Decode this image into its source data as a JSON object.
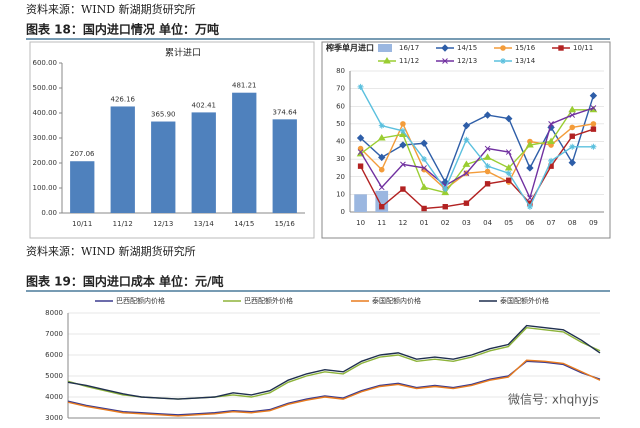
{
  "source_top": "资料来源：WIND 新湖期货研究所",
  "figure18_title": "图表 18：国内进口情况   单位：万吨",
  "source_mid": "资料来源：WIND 新湖期货研究所",
  "figure19_title": "图表 19：国内进口成本   单位：元/吨",
  "watermark": "微信号: xhqhyjs",
  "chart_data": [
    {
      "type": "bar",
      "title": "累计进口",
      "color": "#4f81bd",
      "categories": [
        "10/11",
        "11/12",
        "12/13",
        "13/14",
        "14/15",
        "15/16"
      ],
      "values": [
        207.06,
        426.16,
        365.9,
        402.41,
        481.21,
        374.64
      ],
      "value_labels": [
        "207.06",
        "426.16",
        "365.90",
        "402.41",
        "481.21",
        "374.64"
      ],
      "ylim": [
        0,
        600
      ],
      "yticks": [
        {
          "value": 0,
          "label": "0.00"
        },
        {
          "value": 100,
          "label": "100.00"
        },
        {
          "value": 200,
          "label": "200.00"
        },
        {
          "value": 300,
          "label": "300.00"
        },
        {
          "value": 400,
          "label": "400.00"
        },
        {
          "value": 500,
          "label": "500.00"
        },
        {
          "value": 600,
          "label": "600.00"
        }
      ],
      "grid": false
    },
    {
      "type": "line",
      "title": "榨季单月进口",
      "categories": [
        "10",
        "11",
        "12",
        "01",
        "02",
        "03",
        "04",
        "05",
        "06",
        "07",
        "08",
        "09"
      ],
      "ylim": [
        0,
        80
      ],
      "yticks": [
        0,
        10,
        20,
        30,
        40,
        50,
        60,
        70,
        80
      ],
      "grid": true,
      "series": [
        {
          "name": "16/17",
          "color": "#9bb7e0",
          "series_type": "bar",
          "values": [
            10,
            12,
            null,
            null,
            null,
            null,
            null,
            null,
            null,
            null,
            null,
            null
          ]
        },
        {
          "name": "14/15",
          "color": "#2e5ea8",
          "marker": "diamond",
          "values": [
            42,
            31,
            38,
            39,
            17,
            49,
            55,
            53,
            25,
            48,
            28,
            66
          ]
        },
        {
          "name": "15/16",
          "color": "#f39c3a",
          "marker": "circle",
          "values": [
            36,
            24,
            50,
            24,
            13,
            22,
            23,
            17,
            40,
            38,
            48,
            50
          ]
        },
        {
          "name": "10/11",
          "color": "#b22222",
          "marker": "square",
          "values": [
            26,
            3,
            13,
            2,
            3,
            5,
            16,
            18,
            5,
            26,
            43,
            47
          ]
        },
        {
          "name": "11/12",
          "color": "#9acd32",
          "marker": "triangle",
          "values": [
            33,
            42,
            44,
            14,
            11,
            27,
            31,
            25,
            38,
            40,
            58,
            58
          ]
        },
        {
          "name": "12/13",
          "color": "#7030a0",
          "marker": "x",
          "values": [
            34,
            14,
            27,
            25,
            15,
            22,
            36,
            34,
            8,
            50,
            55,
            59
          ]
        },
        {
          "name": "13/14",
          "color": "#5bc0de",
          "marker": "star",
          "values": [
            71,
            49,
            46,
            30,
            13,
            41,
            26,
            22,
            3,
            29,
            37,
            37
          ]
        }
      ]
    },
    {
      "type": "line",
      "ylim": [
        3000,
        8000
      ],
      "yticks": [
        3000,
        4000,
        5000,
        6000,
        7000,
        8000
      ],
      "grid": true,
      "series": [
        {
          "name": "巴西配额内价格",
          "color": "#3b3b8f",
          "values": [
            3800,
            3600,
            3450,
            3300,
            3250,
            3200,
            3150,
            3200,
            3250,
            3350,
            3300,
            3400,
            3700,
            3900,
            4050,
            3950,
            4300,
            4550,
            4650,
            4450,
            4550,
            4450,
            4600,
            4850,
            5000,
            5700,
            5650,
            5550,
            5150,
            4850
          ]
        },
        {
          "name": "巴西配额外价格",
          "color": "#8db33a",
          "values": [
            4750,
            4500,
            4300,
            4100,
            4000,
            3950,
            3900,
            3950,
            4000,
            4100,
            4000,
            4200,
            4700,
            5000,
            5200,
            5100,
            5600,
            5900,
            6000,
            5700,
            5800,
            5700,
            5900,
            6200,
            6400,
            7300,
            7200,
            7100,
            6600,
            6200
          ]
        },
        {
          "name": "泰国配额内价格",
          "color": "#e87b1e",
          "values": [
            3750,
            3550,
            3400,
            3250,
            3200,
            3150,
            3100,
            3150,
            3200,
            3300,
            3250,
            3350,
            3650,
            3850,
            4000,
            3900,
            4250,
            4500,
            4600,
            4400,
            4500,
            4400,
            4550,
            4800,
            4950,
            5750,
            5700,
            5600,
            5200,
            4800
          ]
        },
        {
          "name": "泰国配额外价格",
          "color": "#1f2f4f",
          "values": [
            4700,
            4550,
            4350,
            4150,
            4000,
            3950,
            3900,
            3950,
            4000,
            4200,
            4100,
            4300,
            4800,
            5100,
            5300,
            5200,
            5700,
            6000,
            6100,
            5800,
            5900,
            5800,
            6000,
            6300,
            6500,
            7400,
            7300,
            7200,
            6700,
            6100
          ]
        }
      ]
    }
  ]
}
